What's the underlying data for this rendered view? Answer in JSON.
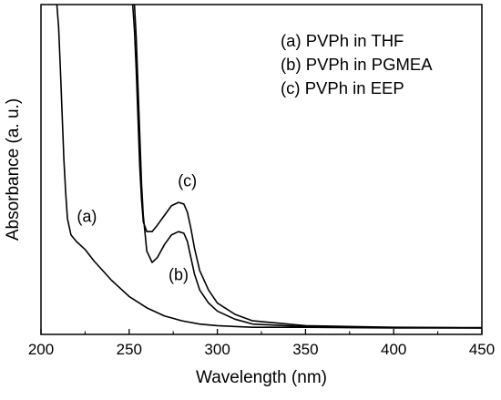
{
  "chart_data": {
    "type": "line",
    "title": "",
    "xlabel": "Wavelength (nm)",
    "ylabel": "Absorbance (a. u.)",
    "xlim": [
      200,
      450
    ],
    "ylim": [
      0,
      1
    ],
    "x_ticks": [
      200,
      250,
      300,
      350,
      400,
      450
    ],
    "y_tick_labels": false,
    "grid": false,
    "legend": {
      "placement": "top-right",
      "entries": [
        "(a) PVPh in THF",
        "(b) PVPh in PGMEA",
        "(c) PVPh in EEP"
      ]
    },
    "series": [
      {
        "label": "(a)",
        "color": "#000000",
        "x": [
          209,
          210,
          211,
          212,
          213,
          214,
          215,
          217,
          220,
          225,
          230,
          240,
          250,
          260,
          270,
          280,
          290,
          300,
          320,
          350,
          400,
          450
        ],
        "y": [
          1.0,
          0.93,
          0.8,
          0.66,
          0.52,
          0.42,
          0.34,
          0.29,
          0.27,
          0.245,
          0.21,
          0.15,
          0.1,
          0.065,
          0.04,
          0.025,
          0.015,
          0.01,
          0.005,
          0.005,
          0.003,
          0.003
        ]
      },
      {
        "label": "(b)",
        "color": "#000000",
        "x": [
          253,
          254,
          255,
          256,
          257,
          258,
          260,
          263,
          266,
          270,
          274,
          278,
          281,
          283,
          285,
          287,
          290,
          295,
          300,
          310,
          320,
          350,
          400,
          450
        ],
        "y": [
          1.0,
          0.9,
          0.75,
          0.6,
          0.45,
          0.35,
          0.24,
          0.205,
          0.22,
          0.26,
          0.29,
          0.3,
          0.295,
          0.27,
          0.22,
          0.17,
          0.12,
          0.08,
          0.055,
          0.03,
          0.015,
          0.007,
          0.004,
          0.003
        ]
      },
      {
        "label": "(c)",
        "color": "#000000",
        "x": [
          252,
          253,
          254,
          255,
          256,
          257,
          258,
          260,
          263,
          266,
          270,
          274,
          278,
          281,
          283,
          285,
          287,
          290,
          295,
          300,
          310,
          320,
          350,
          400,
          450
        ],
        "y": [
          1.0,
          0.92,
          0.8,
          0.65,
          0.5,
          0.4,
          0.33,
          0.3,
          0.3,
          0.32,
          0.35,
          0.38,
          0.39,
          0.385,
          0.36,
          0.31,
          0.25,
          0.18,
          0.12,
          0.08,
          0.045,
          0.025,
          0.01,
          0.005,
          0.004
        ]
      }
    ],
    "annotations": [
      {
        "text": "(a)",
        "x": 226,
        "y": 0.33
      },
      {
        "text": "(b)",
        "x": 278,
        "y": 0.15
      },
      {
        "text": "(c)",
        "x": 283,
        "y": 0.44
      }
    ]
  }
}
